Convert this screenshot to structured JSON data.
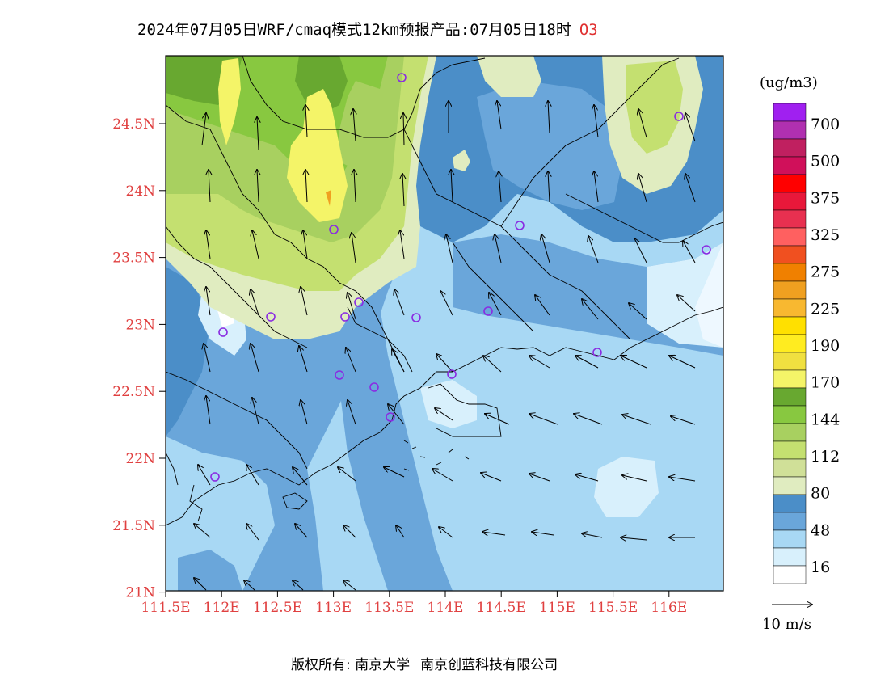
{
  "title": {
    "main": "2024年07月05日WRF/cmaq模式12km预报产品:07月05日18时",
    "species": "O3"
  },
  "axes": {
    "lat_labels": [
      "24.5N",
      "24N",
      "23.5N",
      "23N",
      "22.5N",
      "22N",
      "21.5N",
      "21N"
    ],
    "lon_labels": [
      "111.5E",
      "112E",
      "112.5E",
      "113E",
      "113.5E",
      "114E",
      "114.5E",
      "115E",
      "115.5E",
      "116E"
    ]
  },
  "colorbar": {
    "unit": "(ug/m3)",
    "labels": [
      "700",
      "500",
      "375",
      "325",
      "275",
      "225",
      "190",
      "170",
      "144",
      "112",
      "80",
      "48",
      "16"
    ],
    "colors": [
      "#a020f0",
      "#b030b0",
      "#c02060",
      "#d0105a",
      "#ff0000",
      "#e8183a",
      "#e83050",
      "#ff6060",
      "#f05020",
      "#f08000",
      "#f0a020",
      "#f8b830",
      "#ffe000",
      "#ffec20",
      "#f0e040",
      "#f4f468",
      "#68a830",
      "#88c840",
      "#a8d060",
      "#c4e070",
      "#d0e098",
      "#e0ecc0",
      "#4b8ec8",
      "#6aa6da",
      "#a8d8f4",
      "#d8f0fc",
      "#ffffff"
    ]
  },
  "wind_legend": {
    "label": "10 m/s"
  },
  "footer": {
    "owner": "版权所有: 南京大学",
    "company": "南京创蓝科技有限公司"
  },
  "colors": {
    "tick_red": "#e04040",
    "station_purple": "#8a2be2"
  }
}
